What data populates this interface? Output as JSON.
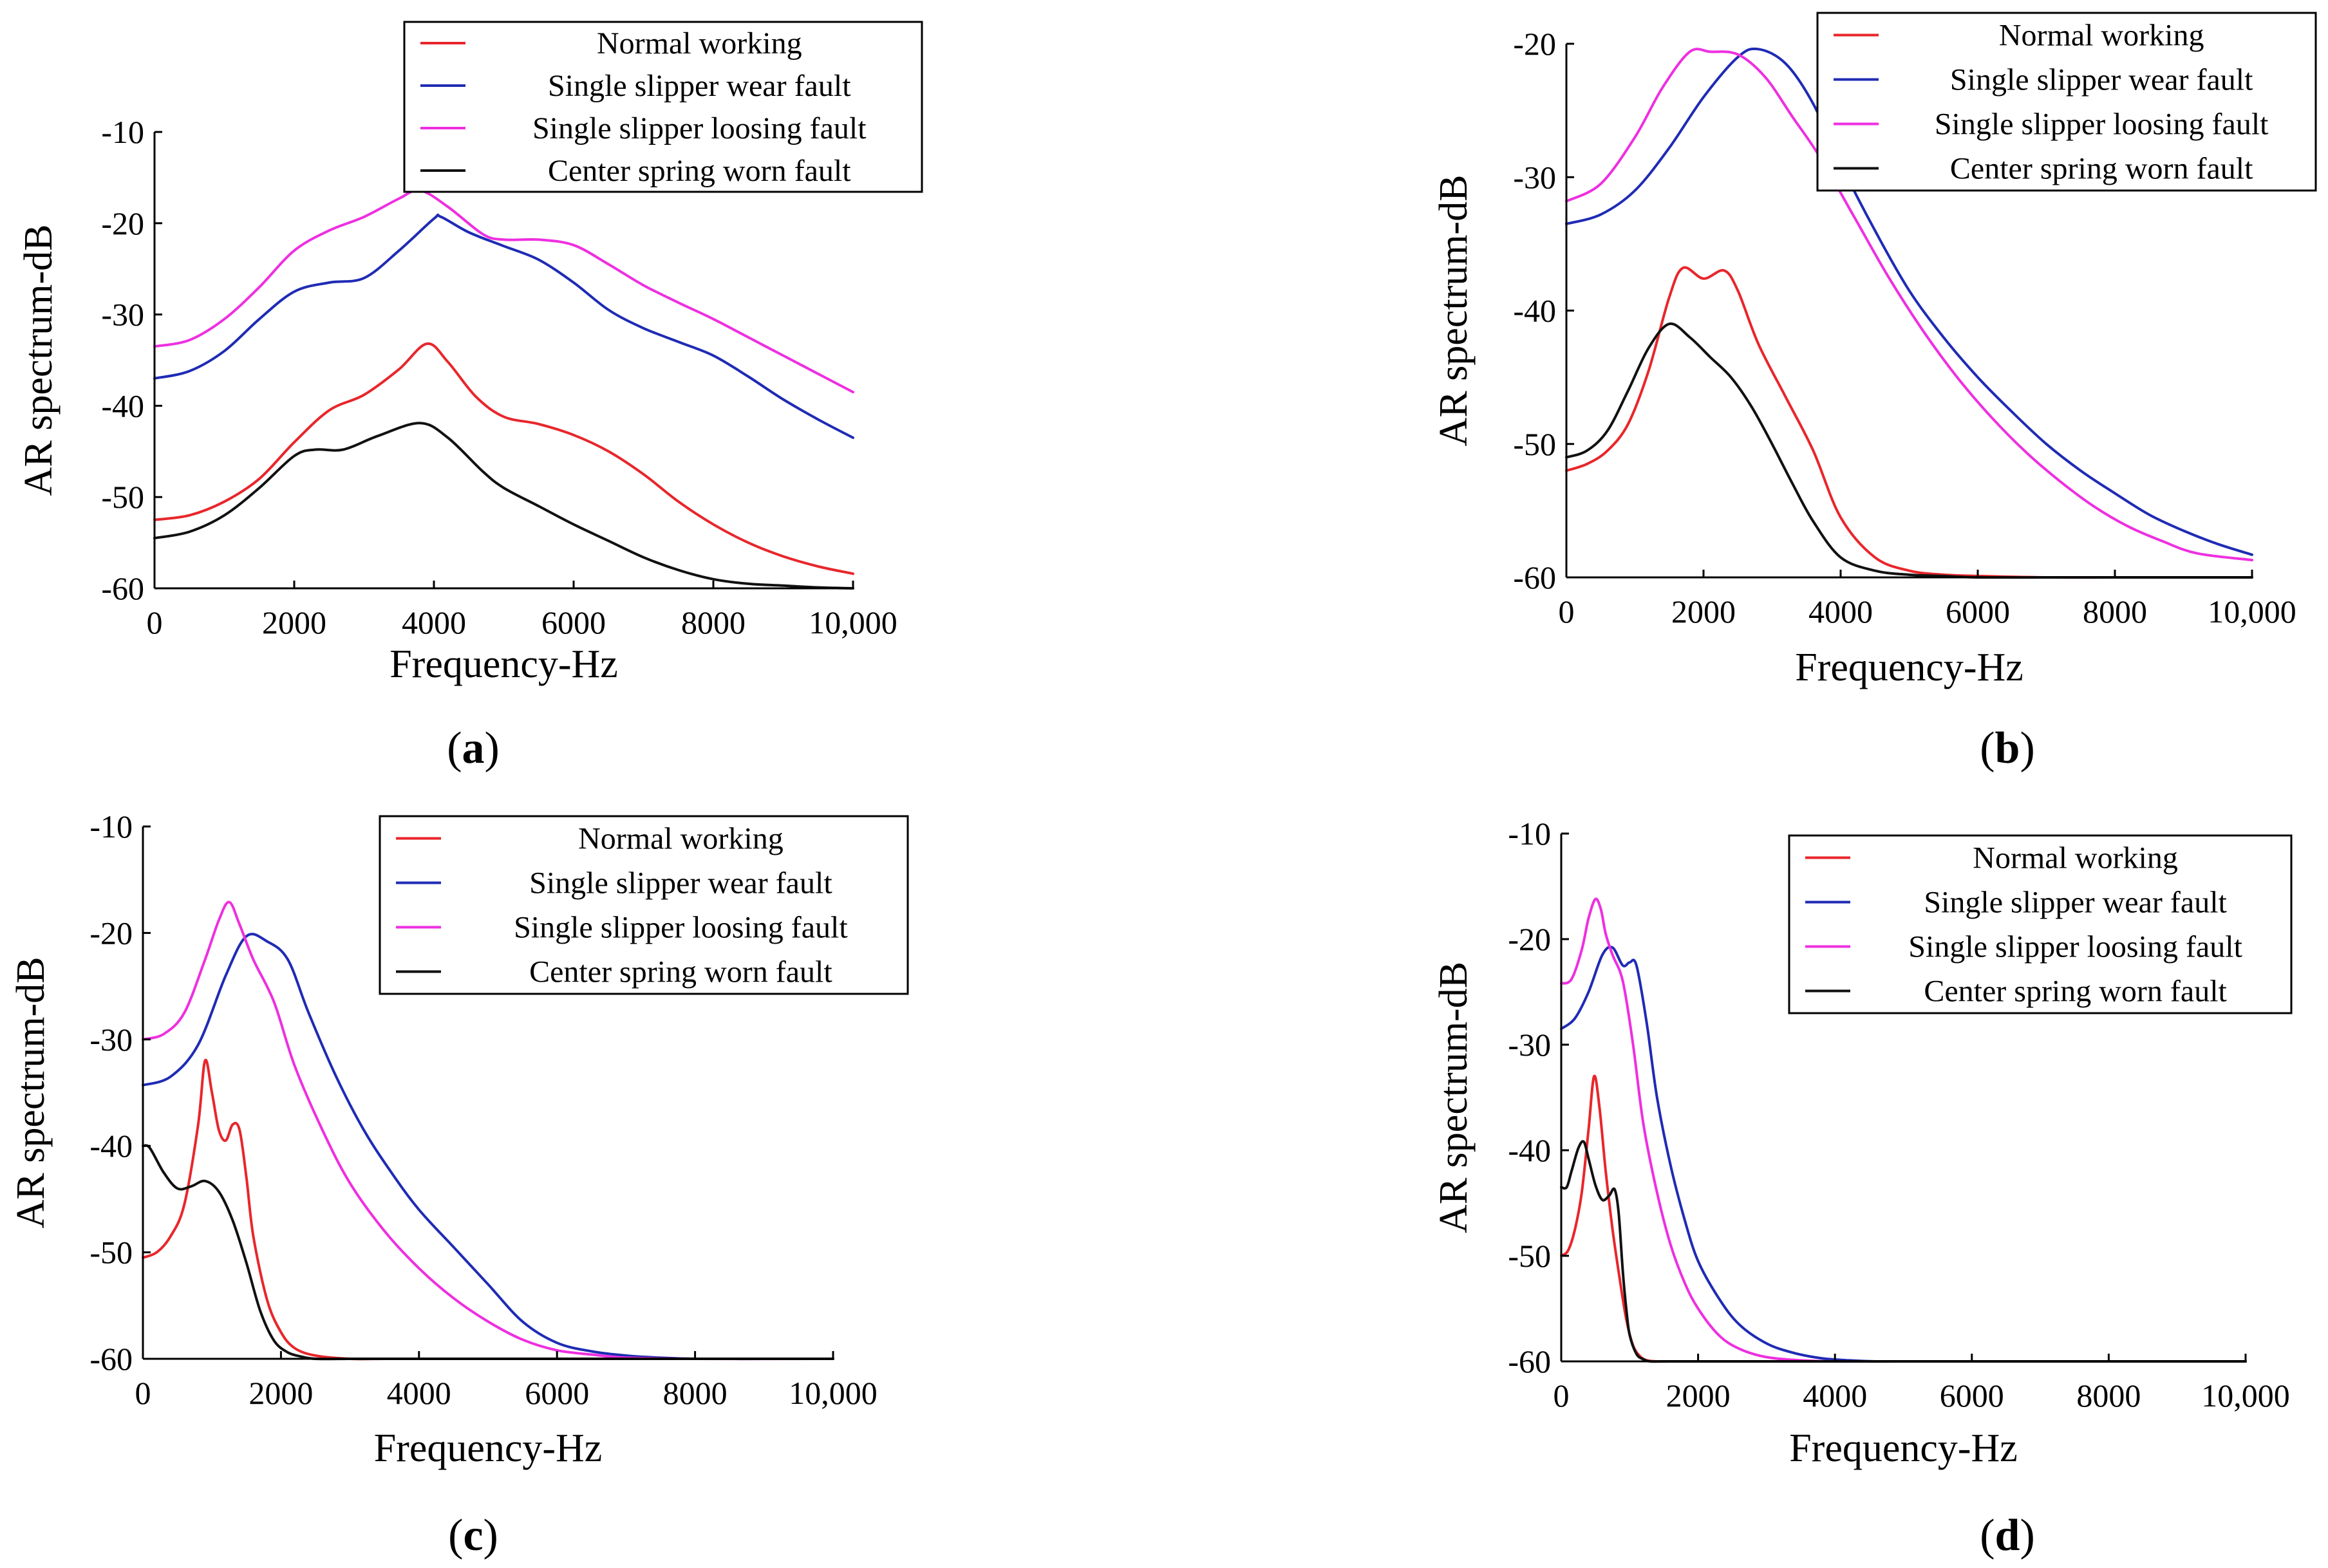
{
  "colors": {
    "Normal working": "#e8262b",
    "Single slipper wear fault": "#1f2bb4",
    "Single slipper loosing fault": "#ee2fe0",
    "Center spring worn fault": "#111111"
  },
  "chart_data": [
    {
      "type": "line",
      "panel": "a",
      "xlabel": "Frequency-Hz",
      "ylabel": "AR spectrum-dB",
      "xlim": [
        0,
        10000
      ],
      "ylim": [
        -60,
        -10
      ],
      "xticks": [
        0,
        2000,
        4000,
        6000,
        8000,
        10000
      ],
      "xtick_labels": [
        "0",
        "2000",
        "4000",
        "6000",
        "8000",
        "10,000"
      ],
      "yticks": [
        -60,
        -50,
        -40,
        -30,
        -20,
        -10
      ],
      "ytick_labels": [
        "-60",
        "-50",
        "-40",
        "-30",
        "-20",
        "-10"
      ],
      "legend": "top-right",
      "series": [
        {
          "name": "Normal working",
          "x": [
            0,
            500,
            1000,
            1500,
            2000,
            2500,
            3000,
            3500,
            3900,
            4200,
            4600,
            5000,
            5500,
            6000,
            6500,
            7000,
            7500,
            8000,
            8500,
            9000,
            9500,
            10000
          ],
          "y": [
            -52.5,
            -52,
            -50.5,
            -48,
            -44,
            -40.5,
            -38.8,
            -36,
            -33.2,
            -35.2,
            -39,
            -41.2,
            -42,
            -43.2,
            -45,
            -47.5,
            -50.5,
            -53,
            -55,
            -56.5,
            -57.6,
            -58.4
          ]
        },
        {
          "name": "Single slipper wear fault",
          "x": [
            0,
            500,
            1000,
            1500,
            2000,
            2500,
            3000,
            3500,
            4000,
            4100,
            4500,
            5000,
            5500,
            6000,
            6500,
            7000,
            7500,
            8000,
            8500,
            9000,
            9500,
            10000
          ],
          "y": [
            -37,
            -36.2,
            -34,
            -30.5,
            -27.5,
            -26.5,
            -26,
            -23,
            -19.5,
            -19.3,
            -21,
            -22.5,
            -24,
            -26.5,
            -29.5,
            -31.5,
            -33,
            -34.5,
            -36.8,
            -39.3,
            -41.5,
            -43.5
          ]
        },
        {
          "name": "Single slipper loosing fault",
          "x": [
            0,
            500,
            1000,
            1500,
            2000,
            2500,
            3000,
            3500,
            3800,
            4200,
            4700,
            5000,
            5500,
            6000,
            6500,
            7000,
            7500,
            8000,
            8500,
            9000,
            9500,
            10000
          ],
          "y": [
            -33.5,
            -32.8,
            -30.5,
            -27,
            -23,
            -20.8,
            -19.3,
            -17.3,
            -16.4,
            -18.2,
            -21.2,
            -21.8,
            -21.8,
            -22.4,
            -24.5,
            -26.8,
            -28.7,
            -30.5,
            -32.5,
            -34.5,
            -36.5,
            -38.5
          ]
        },
        {
          "name": "Center spring worn fault",
          "x": [
            0,
            500,
            1000,
            1500,
            2000,
            2300,
            2700,
            3200,
            3800,
            4200,
            4700,
            5000,
            5500,
            6000,
            6500,
            7000,
            7500,
            8000,
            8500,
            9000,
            9500,
            10000
          ],
          "y": [
            -54.5,
            -53.8,
            -52,
            -49,
            -45.5,
            -44.8,
            -44.8,
            -43.3,
            -41.9,
            -43.5,
            -47.2,
            -49,
            -51,
            -53,
            -54.8,
            -56.6,
            -58,
            -59,
            -59.5,
            -59.7,
            -59.9,
            -60
          ]
        }
      ]
    },
    {
      "type": "line",
      "panel": "b",
      "xlabel": "Frequency-Hz",
      "ylabel": "AR spectrum-dB",
      "xlim": [
        0,
        10000
      ],
      "ylim": [
        -60,
        -20
      ],
      "xticks": [
        0,
        2000,
        4000,
        6000,
        8000,
        10000
      ],
      "xtick_labels": [
        "0",
        "2000",
        "4000",
        "6000",
        "8000",
        "10,000"
      ],
      "yticks": [
        -60,
        -50,
        -40,
        -30,
        -20
      ],
      "ytick_labels": [
        "-60",
        "-50",
        "-40",
        "-30",
        "-20"
      ],
      "legend": "top-right",
      "series": [
        {
          "name": "Normal working",
          "x": [
            0,
            300,
            600,
            900,
            1200,
            1500,
            1700,
            2000,
            2300,
            2500,
            2800,
            3200,
            3600,
            4000,
            4500,
            5000,
            5500,
            6000,
            7000,
            8000,
            9000,
            10000
          ],
          "y": [
            -52,
            -51.5,
            -50.5,
            -48.5,
            -44.5,
            -39,
            -36.8,
            -37.6,
            -37,
            -38.5,
            -42.5,
            -46.5,
            -50.5,
            -55.5,
            -58.5,
            -59.5,
            -59.8,
            -59.9,
            -60,
            -60,
            -60,
            -60
          ]
        },
        {
          "name": "Single slipper wear fault",
          "x": [
            0,
            500,
            1000,
            1500,
            2000,
            2500,
            2800,
            3200,
            3600,
            4000,
            4500,
            5000,
            5500,
            6000,
            6500,
            7000,
            7500,
            8000,
            8500,
            9000,
            9500,
            10000
          ],
          "y": [
            -33.5,
            -32.8,
            -31,
            -27.8,
            -24,
            -21,
            -20.4,
            -21.5,
            -24.5,
            -29,
            -34,
            -38.5,
            -42,
            -45,
            -47.6,
            -50,
            -52,
            -53.7,
            -55.3,
            -56.5,
            -57.5,
            -58.3
          ]
        },
        {
          "name": "Single slipper loosing fault",
          "x": [
            0,
            500,
            1000,
            1400,
            1800,
            2100,
            2500,
            2900,
            3300,
            3700,
            4200,
            4700,
            5200,
            5700,
            6200,
            6700,
            7200,
            7700,
            8200,
            8700,
            9200,
            10000
          ],
          "y": [
            -31.8,
            -30.5,
            -27,
            -23.3,
            -20.6,
            -20.6,
            -20.8,
            -22.5,
            -25.5,
            -28.5,
            -33,
            -37.5,
            -41.5,
            -45,
            -48,
            -50.6,
            -52.8,
            -54.7,
            -56.2,
            -57.3,
            -58.2,
            -58.7
          ]
        },
        {
          "name": "Center spring worn fault",
          "x": [
            0,
            300,
            600,
            900,
            1200,
            1500,
            1800,
            2100,
            2400,
            2700,
            3000,
            3300,
            3600,
            4000,
            4500,
            5000,
            5500,
            6000,
            7000,
            8000,
            9000,
            10000
          ],
          "y": [
            -51,
            -50.5,
            -49,
            -46,
            -42.8,
            -41,
            -42,
            -43.5,
            -45,
            -47.2,
            -50,
            -53,
            -55.8,
            -58.5,
            -59.5,
            -59.8,
            -59.9,
            -60,
            -60,
            -60,
            -60,
            -60
          ]
        }
      ]
    },
    {
      "type": "line",
      "panel": "c",
      "xlabel": "Frequency-Hz",
      "ylabel": "AR spectrum-dB",
      "xlim": [
        0,
        10000
      ],
      "ylim": [
        -60,
        -10
      ],
      "xticks": [
        0,
        2000,
        4000,
        6000,
        8000,
        10000
      ],
      "xtick_labels": [
        "0",
        "2000",
        "4000",
        "6000",
        "8000",
        "10,000"
      ],
      "yticks": [
        -60,
        -50,
        -40,
        -30,
        -20,
        -10
      ],
      "ytick_labels": [
        "-60",
        "-50",
        "-40",
        "-30",
        "-20",
        "-10"
      ],
      "legend": "top-right",
      "series": [
        {
          "name": "Normal working",
          "x": [
            0,
            200,
            400,
            600,
            800,
            900,
            1000,
            1100,
            1200,
            1300,
            1400,
            1500,
            1600,
            1800,
            2000,
            2200,
            2500,
            3000,
            3500,
            4000,
            6000,
            10000
          ],
          "y": [
            -50.5,
            -50,
            -48.5,
            -45.5,
            -38,
            -32,
            -35,
            -38.5,
            -39.5,
            -38,
            -38.5,
            -43,
            -48.5,
            -54.5,
            -57.5,
            -59,
            -59.7,
            -60,
            -60,
            -60,
            -60,
            -60
          ]
        },
        {
          "name": "Single slipper wear fault",
          "x": [
            0,
            400,
            800,
            1200,
            1500,
            1800,
            2100,
            2400,
            2800,
            3200,
            3600,
            4000,
            4500,
            5000,
            5500,
            6000,
            6500,
            7000,
            7500,
            8000,
            9000,
            10000
          ],
          "y": [
            -34.3,
            -33.5,
            -30.5,
            -24,
            -20.3,
            -20.8,
            -22.5,
            -27.5,
            -33.5,
            -38.5,
            -42.5,
            -46,
            -49.5,
            -53,
            -56.5,
            -58.5,
            -59.3,
            -59.7,
            -59.9,
            -60,
            -60,
            -60
          ]
        },
        {
          "name": "Single slipper loosing fault",
          "x": [
            0,
            300,
            600,
            900,
            1100,
            1250,
            1400,
            1600,
            1900,
            2200,
            2600,
            3000,
            3500,
            4000,
            4500,
            5000,
            5500,
            6000,
            6500,
            7000,
            8000,
            10000
          ],
          "y": [
            -30,
            -29.5,
            -27.5,
            -22.5,
            -18.8,
            -17.1,
            -19.2,
            -22.5,
            -26.5,
            -32.5,
            -38.5,
            -43.5,
            -48,
            -51.5,
            -54.3,
            -56.5,
            -58.2,
            -59.2,
            -59.6,
            -59.9,
            -60,
            -60
          ]
        },
        {
          "name": "Center spring worn fault",
          "x": [
            0,
            100,
            300,
            500,
            700,
            900,
            1100,
            1300,
            1500,
            1700,
            1900,
            2100,
            2300,
            2500,
            3000,
            3500,
            4000,
            5000,
            6000,
            7000,
            8000,
            10000
          ],
          "y": [
            -40,
            -40.2,
            -42.5,
            -44,
            -43.8,
            -43.3,
            -44.3,
            -47,
            -51,
            -55.5,
            -58.3,
            -59.4,
            -59.8,
            -60,
            -60,
            -60,
            -60,
            -60,
            -60,
            -60,
            -60,
            -60
          ]
        }
      ]
    },
    {
      "type": "line",
      "panel": "d",
      "xlabel": "Frequency-Hz",
      "ylabel": "AR spectrum-dB",
      "xlim": [
        0,
        10000
      ],
      "ylim": [
        -60,
        -10
      ],
      "xticks": [
        0,
        2000,
        4000,
        6000,
        8000,
        10000
      ],
      "xtick_labels": [
        "0",
        "2000",
        "4000",
        "6000",
        "8000",
        "10,000"
      ],
      "yticks": [
        -60,
        -50,
        -40,
        -30,
        -20,
        -10
      ],
      "ytick_labels": [
        "-60",
        "-50",
        "-40",
        "-30",
        "-20",
        "-10"
      ],
      "legend": "top-right",
      "series": [
        {
          "name": "Normal working",
          "x": [
            0,
            100,
            200,
            300,
            400,
            480,
            560,
            650,
            750,
            850,
            950,
            1050,
            1150,
            1250,
            1400,
            1600,
            1800,
            2000,
            3000,
            4000,
            6000,
            10000
          ],
          "y": [
            -50,
            -49.5,
            -47.5,
            -44,
            -38,
            -33,
            -36,
            -42,
            -47.5,
            -52,
            -56,
            -58.5,
            -59.5,
            -59.9,
            -60,
            -60,
            -60,
            -60,
            -60,
            -60,
            -60,
            -60
          ]
        },
        {
          "name": "Single slipper wear fault",
          "x": [
            0,
            200,
            400,
            600,
            750,
            900,
            1000,
            1100,
            1250,
            1400,
            1600,
            1800,
            2000,
            2300,
            2600,
            3000,
            3400,
            3800,
            4200,
            4600,
            5000,
            10000
          ],
          "y": [
            -28.5,
            -27.5,
            -25,
            -21.5,
            -20.8,
            -22.5,
            -22.2,
            -22.5,
            -28,
            -35,
            -41.5,
            -46.5,
            -50.5,
            -54,
            -56.5,
            -58.3,
            -59.2,
            -59.7,
            -59.9,
            -60,
            -60,
            -60
          ]
        },
        {
          "name": "Single slipper loosing fault",
          "x": [
            0,
            150,
            300,
            400,
            500,
            580,
            650,
            750,
            900,
            1050,
            1200,
            1400,
            1600,
            1800,
            2000,
            2300,
            2600,
            3000,
            3500,
            4000,
            5000,
            10000
          ],
          "y": [
            -24.2,
            -23.8,
            -21,
            -18,
            -16.2,
            -17.2,
            -19.5,
            -21.5,
            -24,
            -30,
            -37.5,
            -44,
            -49,
            -52.5,
            -55,
            -57.5,
            -58.8,
            -59.6,
            -59.9,
            -60,
            -60,
            -60
          ]
        },
        {
          "name": "Center spring worn fault",
          "x": [
            0,
            80,
            150,
            250,
            330,
            400,
            500,
            600,
            700,
            780,
            840,
            900,
            950,
            1000,
            1100,
            1200,
            1300,
            1500,
            2000,
            3000,
            5000,
            10000
          ],
          "y": [
            -43.5,
            -43.5,
            -42,
            -39.8,
            -39.2,
            -40.8,
            -43.3,
            -44.7,
            -44.3,
            -43.7,
            -46,
            -51.5,
            -55,
            -57.5,
            -59.3,
            -59.8,
            -60,
            -60,
            -60,
            -60,
            -60,
            -60
          ]
        }
      ]
    }
  ],
  "panel_labels": [
    "a",
    "b",
    "c",
    "d"
  ],
  "paren_open": "(",
  "paren_close": ")"
}
